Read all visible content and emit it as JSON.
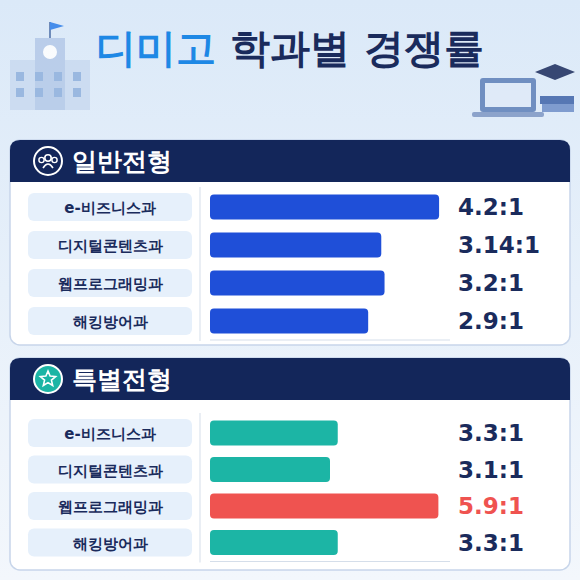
{
  "header": {
    "title": "디미고 학과별 경쟁률"
  },
  "chart_data": [
    {
      "type": "bar",
      "title": "일반전형",
      "orientation": "horizontal",
      "categories": [
        "e-비즈니스과",
        "디지털콘텐츠과",
        "웹프로그래밍과",
        "해킹방어과"
      ],
      "values": [
        4.2,
        3.14,
        3.2,
        2.9
      ],
      "value_labels": [
        "4.2:1",
        "3.14:1",
        "3.2:1",
        "2.9:1"
      ],
      "color": "#1f4fd8",
      "xlim": [
        0,
        4.4
      ],
      "data_labels": true,
      "tick_labels": "y"
    },
    {
      "type": "bar",
      "title": "특별전형",
      "orientation": "horizontal",
      "categories": [
        "e-비즈니스과",
        "디지털콘텐츠과",
        "웹프로그래밍과",
        "해킹방어과"
      ],
      "values": [
        3.3,
        3.1,
        5.9,
        3.3
      ],
      "value_labels": [
        "3.3:1",
        "3.1:1",
        "5.9:1",
        "3.3:1"
      ],
      "colors": [
        "#1cb5a5",
        "#1cb5a5",
        "#ef5350",
        "#1cb5a5"
      ],
      "xlim": [
        0,
        6.2
      ],
      "data_labels": true,
      "tick_labels": "y"
    }
  ]
}
